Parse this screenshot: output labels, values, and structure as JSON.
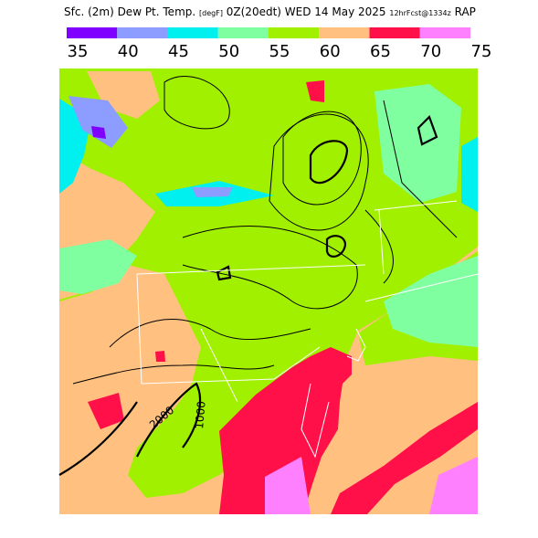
{
  "header": {
    "title": "Sfc. (2m) Dew Pt. Temp.",
    "units": "[degF]",
    "valid": "0Z(20edt) WED 14 May 2025",
    "forecast": "12hrFcst@1334z",
    "model": "RAP"
  },
  "colorbar": {
    "ticks": [
      35,
      40,
      45,
      50,
      55,
      60,
      65,
      70,
      75
    ],
    "colors": [
      "#8000ff",
      "#8c9cff",
      "#00f0f0",
      "#80ffa0",
      "#a0f000",
      "#ffc080",
      "#ff1048",
      "#ff80ff"
    ]
  },
  "contour_labels": [
    "2000",
    "1000"
  ]
}
